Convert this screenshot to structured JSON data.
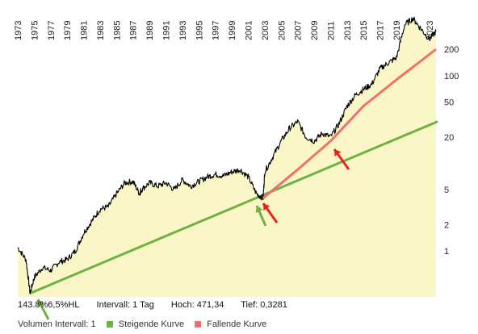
{
  "chart_data": {
    "type": "line",
    "scale": "log",
    "x_tick_labels": [
      "1973",
      "1975",
      "1977",
      "1979",
      "1981",
      "1983",
      "1985",
      "1987",
      "1989",
      "1991",
      "1993",
      "1995",
      "1997",
      "1999",
      "2001",
      "2003",
      "2005",
      "2007",
      "2009",
      "2011",
      "2013",
      "2015",
      "2017",
      "2019",
      "2021",
      "2023"
    ],
    "y_tick_labels": [
      "1",
      "2",
      "5",
      "20",
      "50",
      "100",
      "200"
    ],
    "ylim": [
      0.3281,
      471.34
    ],
    "xlim": [
      1973,
      2024
    ],
    "grid": false,
    "series": [
      {
        "name": "",
        "color": "#000000",
        "fill": "#fbf6c8",
        "x": [
          1973,
          1974,
          1974.5,
          1975,
          1976,
          1977,
          1978,
          1979,
          1980,
          1981,
          1982,
          1983,
          1984,
          1985,
          1986,
          1987,
          1987.8,
          1988,
          1989,
          1990,
          1991,
          1992,
          1993,
          1994,
          1995,
          1996,
          1997,
          1998,
          1999,
          2000,
          2001,
          2002,
          2002.8,
          2003,
          2004,
          2005,
          2006,
          2007,
          2008,
          2009,
          2010,
          2011,
          2012,
          2013,
          2014,
          2015,
          2016,
          2017,
          2018,
          2019,
          2020,
          2021,
          2022,
          2023,
          2023.8
        ],
        "y": [
          1.1,
          0.8,
          0.33,
          0.5,
          0.65,
          0.6,
          0.75,
          0.8,
          1.0,
          1.6,
          2.2,
          3.0,
          3.2,
          4.5,
          6.0,
          6.2,
          4.5,
          5.0,
          6.0,
          5.5,
          6.0,
          5.0,
          6.5,
          5.5,
          6.2,
          7.0,
          7.5,
          7.2,
          8.0,
          8.5,
          7.0,
          4.5,
          4.0,
          8.0,
          12.0,
          18.0,
          25.0,
          30.0,
          20.0,
          18.0,
          22.0,
          20.0,
          28.0,
          45.0,
          60.0,
          70.0,
          80.0,
          120.0,
          140.0,
          160.0,
          380.0,
          450.0,
          340.0,
          260.0,
          320.0
        ]
      },
      {
        "name": "",
        "color": "#6db33f",
        "x": [
          1974.5,
          2024
        ],
        "y": [
          0.33,
          30
        ]
      },
      {
        "name": "",
        "color": "#f07070",
        "x": [
          2002.8,
          2007,
          2011,
          2015,
          2019,
          2023.8
        ],
        "y": [
          4.0,
          8.5,
          18,
          45,
          90,
          200
        ]
      }
    ]
  },
  "info": {
    "left_text": "143.8%6,5%HL",
    "interval": "Intervall: 1 Tag",
    "high": "Hoch:  471,34",
    "low": "Tief: 0,3281"
  },
  "legend": {
    "item1": "Volumen Intervall: 1",
    "item2": "Steigende Kurve",
    "item3": "Fallende Kurve"
  }
}
